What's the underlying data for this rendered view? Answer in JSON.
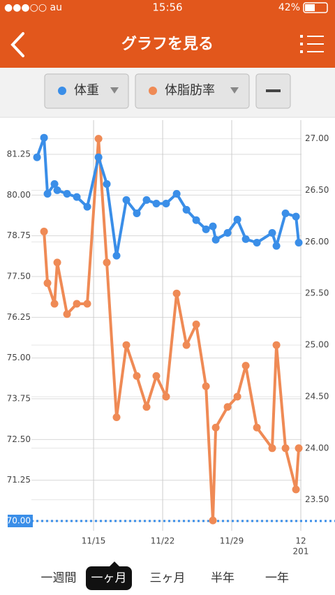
{
  "status_bar": {
    "carrier": "●●●○○ au",
    "time": "15:56",
    "battery": "42%"
  },
  "header": {
    "title": "グラフを見る"
  },
  "chart_data": {
    "type": "line",
    "series": [
      {
        "name": "体重",
        "color": "#3a8ee8",
        "axis": "y",
        "x": [
          9.27,
          9.98,
          10.33,
          11.04,
          11.32,
          12.31,
          13.3,
          14.36,
          15.5,
          16.34,
          17.33,
          18.32,
          19.38,
          20.37,
          21.36,
          22.35,
          23.42,
          24.41,
          25.4,
          26.39,
          27.09,
          27.38,
          28.58,
          29.57,
          30.42,
          31.55,
          33.1,
          33.53,
          34.45,
          35.51,
          35.79
        ],
        "values": [
          81.16,
          81.76,
          80.04,
          80.34,
          80.15,
          80.04,
          79.94,
          79.64,
          81.16,
          80.34,
          78.14,
          79.85,
          79.44,
          79.85,
          79.74,
          79.74,
          80.04,
          79.55,
          79.23,
          78.95,
          79.04,
          78.63,
          78.84,
          79.25,
          78.65,
          78.54,
          78.84,
          78.44,
          79.44,
          79.34,
          78.54
        ]
      },
      {
        "name": "体脂肪率",
        "color": "#ef8a55",
        "axis": "y2",
        "x": [
          9.98,
          10.33,
          11.04,
          11.32,
          12.31,
          13.3,
          14.36,
          15.5,
          16.34,
          17.33,
          18.32,
          19.38,
          20.37,
          21.36,
          22.35,
          23.42,
          24.41,
          25.4,
          26.39,
          27.09,
          27.38,
          28.58,
          29.57,
          30.42,
          31.55,
          33.1,
          33.53,
          34.45,
          35.51,
          35.79
        ],
        "values": [
          26.1,
          25.6,
          25.4,
          25.8,
          25.3,
          25.4,
          25.4,
          27.0,
          25.8,
          24.3,
          25.0,
          24.7,
          24.4,
          24.7,
          24.5,
          25.5,
          25.0,
          25.2,
          24.6,
          23.3,
          24.2,
          24.4,
          24.5,
          24.8,
          24.2,
          24.0,
          25.0,
          24.0,
          23.6,
          24.0
        ]
      }
    ],
    "xlim": [
      8.7,
      36.07
    ],
    "xticks": [
      {
        "value": 15,
        "label": "11/15"
      },
      {
        "value": 22,
        "label": "11/22"
      },
      {
        "value": 29,
        "label": "11/29"
      },
      {
        "value": 36,
        "label": "12"
      }
    ],
    "x_year_label": "201",
    "ylim": [
      69.7,
      82.3
    ],
    "yticks": [
      {
        "value": 70,
        "label": "70.00"
      },
      {
        "value": 71.25,
        "label": "71.25"
      },
      {
        "value": 72.5,
        "label": "72.50"
      },
      {
        "value": 73.75,
        "label": "73.75"
      },
      {
        "value": 75,
        "label": "75.00"
      },
      {
        "value": 76.25,
        "label": "76.25"
      },
      {
        "value": 77.5,
        "label": "77.50"
      },
      {
        "value": 78.75,
        "label": "78.75"
      },
      {
        "value": 80,
        "label": "80.00"
      },
      {
        "value": 81.25,
        "label": "81.25"
      }
    ],
    "y2lim": [
      23.2,
      27.18
    ],
    "y2ticks": [
      {
        "value": 23.5,
        "label": "23.50"
      },
      {
        "value": 24,
        "label": "24.00"
      },
      {
        "value": 24.5,
        "label": "24.50"
      },
      {
        "value": 25,
        "label": "25.00"
      },
      {
        "value": 25.5,
        "label": "25.50"
      },
      {
        "value": 26,
        "label": "26.00"
      },
      {
        "value": 26.5,
        "label": "26.50"
      },
      {
        "value": 27,
        "label": "27.00"
      }
    ],
    "goal": 70,
    "grid": true
  },
  "tabs": {
    "items": [
      "一週間",
      "一ヶ月",
      "三ヶ月",
      "半年",
      "一年"
    ],
    "selected": 1
  }
}
